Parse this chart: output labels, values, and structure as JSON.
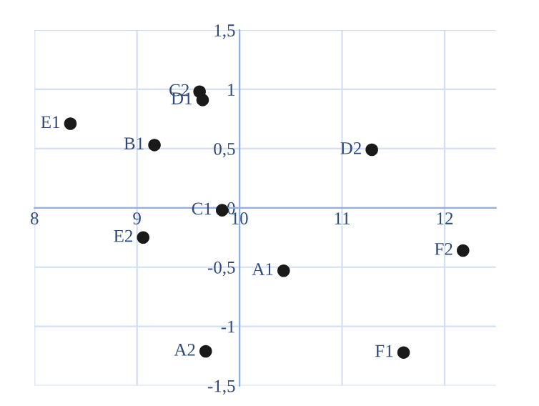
{
  "chart_data": {
    "type": "scatter",
    "series": [
      {
        "color": "#1a1a1a",
        "x": [
          10.43,
          9.67,
          9.17,
          9.83,
          9.61,
          9.64,
          11.29,
          8.35,
          9.06,
          11.6,
          12.18
        ],
        "values": [
          -0.53,
          -1.21,
          0.53,
          -0.02,
          0.98,
          0.91,
          0.49,
          0.71,
          -0.25,
          -1.22,
          -0.36
        ]
      }
    ],
    "annotations": [
      {
        "text": "A1",
        "x": 10.43,
        "y": -0.53
      },
      {
        "text": "A2",
        "x": 9.67,
        "y": -1.21
      },
      {
        "text": "B1",
        "x": 9.17,
        "y": 0.53
      },
      {
        "text": "C1",
        "x": 9.83,
        "y": -0.02
      },
      {
        "text": "C2",
        "x": 9.61,
        "y": 0.98
      },
      {
        "text": "D1",
        "x": 9.64,
        "y": 0.91
      },
      {
        "text": "D2",
        "x": 11.29,
        "y": 0.49
      },
      {
        "text": "E1",
        "x": 8.35,
        "y": 0.71
      },
      {
        "text": "E2",
        "x": 9.06,
        "y": -0.25
      },
      {
        "text": "F1",
        "x": 11.6,
        "y": -1.22
      },
      {
        "text": "F2",
        "x": 12.18,
        "y": -0.36
      }
    ],
    "xlim": [
      8,
      12.5
    ],
    "ylim": [
      -1.5,
      1.5
    ],
    "xticks": [
      8,
      9,
      10,
      11,
      12
    ],
    "yticks": [
      {
        "value": -1.5,
        "label": "-1,5"
      },
      {
        "value": -1,
        "label": "-1"
      },
      {
        "value": -0.5,
        "label": "-0,5"
      },
      {
        "value": 0,
        "label": "0"
      },
      {
        "value": 0.5,
        "label": "0,5"
      },
      {
        "value": 1,
        "label": "1"
      },
      {
        "value": 1.5,
        "label": "1,5"
      }
    ],
    "grid": true,
    "marker": "circle",
    "legend": false
  }
}
